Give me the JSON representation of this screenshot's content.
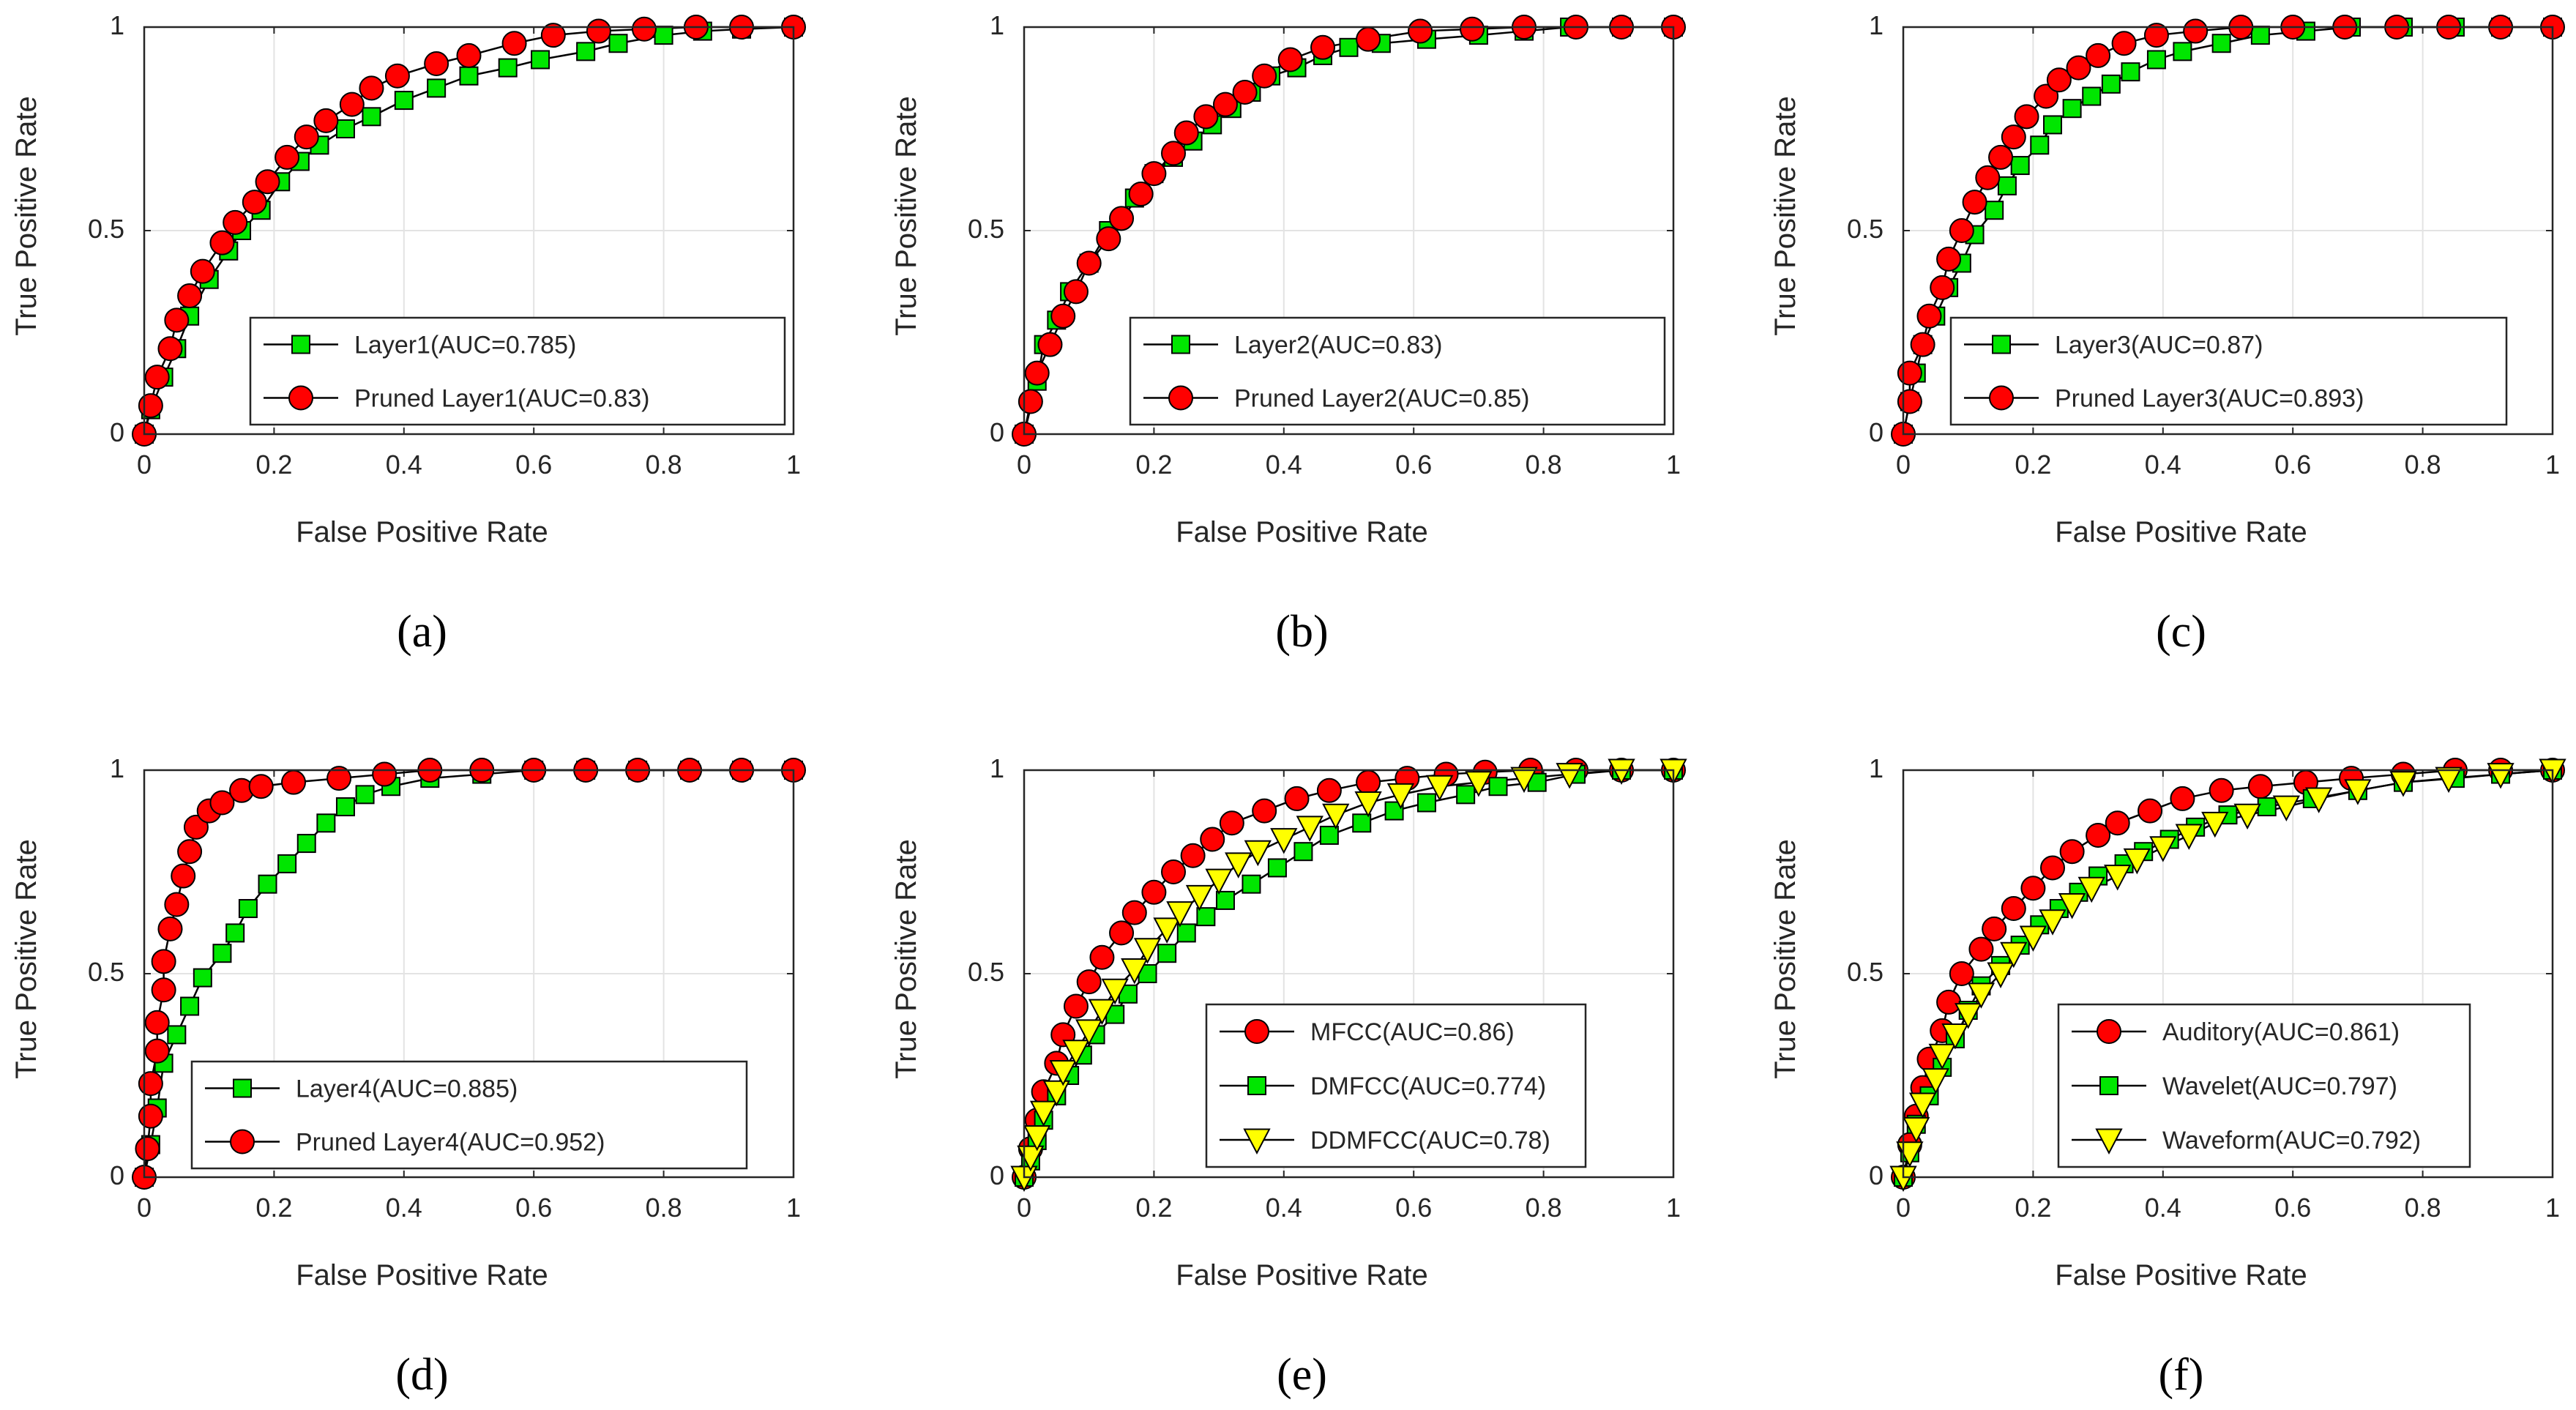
{
  "chart_data": [
    {
      "panel": "a",
      "caption": "(a)",
      "type": "line",
      "xlabel": "False Positive Rate",
      "ylabel": "True Positive Rate",
      "xlim": [
        0,
        1
      ],
      "ylim": [
        0,
        1
      ],
      "xticks": [
        "0",
        "0.2",
        "0.4",
        "0.6",
        "0.8",
        "1"
      ],
      "yticks": [
        "0",
        "0.5",
        "1"
      ],
      "grid": true,
      "legend_position": "bottom-right",
      "series": [
        {
          "name": "Layer1(AUC=0.785)",
          "marker": "square",
          "color": "#00e600",
          "x": [
            0,
            0.01,
            0.03,
            0.05,
            0.07,
            0.1,
            0.13,
            0.15,
            0.18,
            0.21,
            0.24,
            0.27,
            0.31,
            0.35,
            0.4,
            0.45,
            0.5,
            0.56,
            0.61,
            0.68,
            0.73,
            0.8,
            0.86,
            0.92,
            1
          ],
          "y": [
            0,
            0.06,
            0.14,
            0.21,
            0.29,
            0.38,
            0.45,
            0.5,
            0.55,
            0.62,
            0.67,
            0.71,
            0.75,
            0.78,
            0.82,
            0.85,
            0.88,
            0.9,
            0.92,
            0.94,
            0.96,
            0.98,
            0.99,
            0.995,
            1
          ]
        },
        {
          "name": "Pruned Layer1(AUC=0.83)",
          "marker": "circle",
          "color": "#ff0000",
          "x": [
            0,
            0.01,
            0.02,
            0.04,
            0.05,
            0.07,
            0.09,
            0.12,
            0.14,
            0.17,
            0.19,
            0.22,
            0.25,
            0.28,
            0.32,
            0.35,
            0.39,
            0.45,
            0.5,
            0.57,
            0.63,
            0.7,
            0.77,
            0.85,
            0.92,
            1
          ],
          "y": [
            0,
            0.07,
            0.14,
            0.21,
            0.28,
            0.34,
            0.4,
            0.47,
            0.52,
            0.57,
            0.62,
            0.68,
            0.73,
            0.77,
            0.81,
            0.85,
            0.88,
            0.91,
            0.93,
            0.96,
            0.98,
            0.99,
            0.995,
            1,
            1,
            1
          ]
        }
      ]
    },
    {
      "panel": "b",
      "caption": "(b)",
      "type": "line",
      "xlabel": "False Positive Rate",
      "ylabel": "True Positive Rate",
      "xlim": [
        0,
        1
      ],
      "ylim": [
        0,
        1
      ],
      "xticks": [
        "0",
        "0.2",
        "0.4",
        "0.6",
        "0.8",
        "1"
      ],
      "yticks": [
        "0",
        "0.5",
        "1"
      ],
      "grid": true,
      "legend_position": "bottom-right",
      "series": [
        {
          "name": "Layer2(AUC=0.83)",
          "marker": "square",
          "color": "#00e600",
          "x": [
            0,
            0.02,
            0.03,
            0.05,
            0.07,
            0.1,
            0.13,
            0.17,
            0.2,
            0.23,
            0.26,
            0.29,
            0.32,
            0.35,
            0.38,
            0.42,
            0.46,
            0.5,
            0.55,
            0.62,
            0.7,
            0.77,
            0.84,
            0.92,
            1
          ],
          "y": [
            0,
            0.13,
            0.22,
            0.28,
            0.35,
            0.42,
            0.5,
            0.58,
            0.64,
            0.68,
            0.72,
            0.76,
            0.8,
            0.84,
            0.88,
            0.9,
            0.93,
            0.95,
            0.96,
            0.97,
            0.98,
            0.99,
            1,
            1,
            1
          ]
        },
        {
          "name": "Pruned Layer2(AUC=0.85)",
          "marker": "circle",
          "color": "#ff0000",
          "x": [
            0,
            0.01,
            0.02,
            0.04,
            0.06,
            0.08,
            0.1,
            0.13,
            0.15,
            0.18,
            0.2,
            0.23,
            0.25,
            0.28,
            0.31,
            0.34,
            0.37,
            0.41,
            0.46,
            0.53,
            0.61,
            0.69,
            0.77,
            0.85,
            0.92,
            1
          ],
          "y": [
            0,
            0.08,
            0.15,
            0.22,
            0.29,
            0.35,
            0.42,
            0.48,
            0.53,
            0.59,
            0.64,
            0.69,
            0.74,
            0.78,
            0.81,
            0.84,
            0.88,
            0.92,
            0.95,
            0.97,
            0.99,
            0.995,
            1,
            1,
            1,
            1
          ]
        }
      ]
    },
    {
      "panel": "c",
      "caption": "(c)",
      "type": "line",
      "xlabel": "False Positive Rate",
      "ylabel": "True Positive Rate",
      "xlim": [
        0,
        1
      ],
      "ylim": [
        0,
        1
      ],
      "xticks": [
        "0",
        "0.2",
        "0.4",
        "0.6",
        "0.8",
        "1"
      ],
      "yticks": [
        "0",
        "0.5",
        "1"
      ],
      "grid": true,
      "legend_position": "bottom-right",
      "series": [
        {
          "name": "Layer3(AUC=0.87)",
          "marker": "square",
          "color": "#00e600",
          "x": [
            0,
            0.01,
            0.02,
            0.03,
            0.05,
            0.07,
            0.09,
            0.11,
            0.14,
            0.16,
            0.18,
            0.21,
            0.23,
            0.26,
            0.29,
            0.32,
            0.35,
            0.39,
            0.43,
            0.49,
            0.55,
            0.62,
            0.69,
            0.77,
            0.85,
            0.92,
            1
          ],
          "y": [
            0,
            0.08,
            0.15,
            0.22,
            0.29,
            0.36,
            0.42,
            0.49,
            0.55,
            0.61,
            0.66,
            0.71,
            0.76,
            0.8,
            0.83,
            0.86,
            0.89,
            0.92,
            0.94,
            0.96,
            0.98,
            0.99,
            1,
            1,
            1,
            1,
            1
          ]
        },
        {
          "name": "Pruned Layer3(AUC=0.893)",
          "marker": "circle",
          "color": "#ff0000",
          "x": [
            0,
            0.01,
            0.01,
            0.03,
            0.04,
            0.06,
            0.07,
            0.09,
            0.11,
            0.13,
            0.15,
            0.17,
            0.19,
            0.22,
            0.24,
            0.27,
            0.3,
            0.34,
            0.39,
            0.45,
            0.52,
            0.6,
            0.68,
            0.76,
            0.84,
            0.92,
            1
          ],
          "y": [
            0,
            0.08,
            0.15,
            0.22,
            0.29,
            0.36,
            0.43,
            0.5,
            0.57,
            0.63,
            0.68,
            0.73,
            0.78,
            0.83,
            0.87,
            0.9,
            0.93,
            0.96,
            0.98,
            0.99,
            1,
            1,
            1,
            1,
            1,
            1,
            1
          ]
        }
      ]
    },
    {
      "panel": "d",
      "caption": "(d)",
      "type": "line",
      "xlabel": "False Positive Rate",
      "ylabel": "True Positive Rate",
      "xlim": [
        0,
        1
      ],
      "ylim": [
        0,
        1
      ],
      "xticks": [
        "0",
        "0.2",
        "0.4",
        "0.6",
        "0.8",
        "1"
      ],
      "yticks": [
        "0",
        "0.5",
        "1"
      ],
      "grid": true,
      "legend_position": "bottom-right",
      "series": [
        {
          "name": "Layer4(AUC=0.885)",
          "marker": "square",
          "color": "#00e600",
          "x": [
            0,
            0.01,
            0.02,
            0.03,
            0.05,
            0.07,
            0.09,
            0.12,
            0.14,
            0.16,
            0.19,
            0.22,
            0.25,
            0.28,
            0.31,
            0.34,
            0.38,
            0.44,
            0.52,
            0.6,
            0.68,
            0.76,
            0.84,
            0.92,
            1
          ],
          "y": [
            0,
            0.08,
            0.17,
            0.28,
            0.35,
            0.42,
            0.49,
            0.55,
            0.6,
            0.66,
            0.72,
            0.77,
            0.82,
            0.87,
            0.91,
            0.94,
            0.96,
            0.98,
            0.99,
            1,
            1,
            1,
            1,
            1,
            1
          ]
        },
        {
          "name": "Pruned Layer4(AUC=0.952)",
          "marker": "circle",
          "color": "#ff0000",
          "x": [
            0,
            0.005,
            0.01,
            0.01,
            0.02,
            0.02,
            0.03,
            0.03,
            0.04,
            0.05,
            0.06,
            0.07,
            0.08,
            0.1,
            0.12,
            0.15,
            0.18,
            0.23,
            0.3,
            0.37,
            0.44,
            0.52,
            0.6,
            0.68,
            0.76,
            0.84,
            0.92,
            1
          ],
          "y": [
            0,
            0.07,
            0.15,
            0.23,
            0.31,
            0.38,
            0.46,
            0.53,
            0.61,
            0.67,
            0.74,
            0.8,
            0.86,
            0.9,
            0.92,
            0.95,
            0.96,
            0.97,
            0.98,
            0.99,
            1,
            1,
            1,
            1,
            1,
            1,
            1,
            1
          ]
        }
      ]
    },
    {
      "panel": "e",
      "caption": "(e)",
      "type": "line",
      "xlabel": "False Positive Rate",
      "ylabel": "True Positive Rate",
      "xlim": [
        0,
        1
      ],
      "ylim": [
        0,
        1
      ],
      "xticks": [
        "0",
        "0.2",
        "0.4",
        "0.6",
        "0.8",
        "1"
      ],
      "yticks": [
        "0",
        "0.5",
        "1"
      ],
      "grid": true,
      "legend_position": "bottom-right",
      "series": [
        {
          "name": "MFCC(AUC=0.86)",
          "marker": "circle",
          "color": "#ff0000",
          "x": [
            0,
            0.01,
            0.02,
            0.03,
            0.05,
            0.06,
            0.08,
            0.1,
            0.12,
            0.15,
            0.17,
            0.2,
            0.23,
            0.26,
            0.29,
            0.32,
            0.37,
            0.42,
            0.47,
            0.53,
            0.59,
            0.65,
            0.71,
            0.78,
            0.85,
            0.92,
            1
          ],
          "y": [
            0,
            0.07,
            0.14,
            0.21,
            0.28,
            0.35,
            0.42,
            0.48,
            0.54,
            0.6,
            0.65,
            0.7,
            0.75,
            0.79,
            0.83,
            0.87,
            0.9,
            0.93,
            0.95,
            0.97,
            0.98,
            0.99,
            0.995,
            1,
            1,
            1,
            1
          ]
        },
        {
          "name": "DMFCC(AUC=0.774)",
          "marker": "square",
          "color": "#00e600",
          "x": [
            0,
            0.01,
            0.02,
            0.03,
            0.05,
            0.07,
            0.09,
            0.11,
            0.14,
            0.16,
            0.19,
            0.22,
            0.25,
            0.28,
            0.31,
            0.35,
            0.39,
            0.43,
            0.47,
            0.52,
            0.57,
            0.62,
            0.68,
            0.73,
            0.79,
            0.85,
            0.92,
            1
          ],
          "y": [
            0,
            0.04,
            0.09,
            0.14,
            0.2,
            0.25,
            0.3,
            0.35,
            0.4,
            0.45,
            0.5,
            0.55,
            0.6,
            0.64,
            0.68,
            0.72,
            0.76,
            0.8,
            0.84,
            0.87,
            0.9,
            0.92,
            0.94,
            0.96,
            0.97,
            0.99,
            1,
            1
          ]
        },
        {
          "name": "DDMFCC(AUC=0.78)",
          "marker": "triangle",
          "color": "#ffff00",
          "x": [
            0,
            0.01,
            0.02,
            0.03,
            0.05,
            0.06,
            0.08,
            0.1,
            0.12,
            0.14,
            0.17,
            0.19,
            0.22,
            0.24,
            0.27,
            0.3,
            0.33,
            0.36,
            0.4,
            0.44,
            0.48,
            0.53,
            0.58,
            0.64,
            0.7,
            0.77,
            0.84,
            0.92,
            1
          ],
          "y": [
            0,
            0.05,
            0.1,
            0.16,
            0.21,
            0.26,
            0.31,
            0.36,
            0.41,
            0.46,
            0.51,
            0.56,
            0.61,
            0.65,
            0.69,
            0.73,
            0.77,
            0.8,
            0.83,
            0.86,
            0.89,
            0.92,
            0.94,
            0.96,
            0.97,
            0.98,
            0.99,
            1,
            1
          ]
        }
      ]
    },
    {
      "panel": "f",
      "caption": "(f)",
      "type": "line",
      "xlabel": "False Positive Rate",
      "ylabel": "True Positive Rate",
      "xlim": [
        0,
        1
      ],
      "ylim": [
        0,
        1
      ],
      "xticks": [
        "0",
        "0.2",
        "0.4",
        "0.6",
        "0.8",
        "1"
      ],
      "yticks": [
        "0",
        "0.5",
        "1"
      ],
      "grid": true,
      "legend_position": "bottom-right",
      "series": [
        {
          "name": "Auditory(AUC=0.861)",
          "marker": "circle",
          "color": "#ff0000",
          "x": [
            0,
            0.01,
            0.02,
            0.03,
            0.04,
            0.06,
            0.07,
            0.09,
            0.12,
            0.14,
            0.17,
            0.2,
            0.23,
            0.26,
            0.3,
            0.33,
            0.38,
            0.43,
            0.49,
            0.55,
            0.62,
            0.69,
            0.77,
            0.85,
            0.92,
            1
          ],
          "y": [
            0,
            0.08,
            0.15,
            0.22,
            0.29,
            0.36,
            0.43,
            0.5,
            0.56,
            0.61,
            0.66,
            0.71,
            0.76,
            0.8,
            0.84,
            0.87,
            0.9,
            0.93,
            0.95,
            0.96,
            0.97,
            0.98,
            0.99,
            1,
            1,
            1
          ]
        },
        {
          "name": "Wavelet(AUC=0.797)",
          "marker": "square",
          "color": "#00e600",
          "x": [
            0,
            0.01,
            0.02,
            0.04,
            0.06,
            0.08,
            0.1,
            0.12,
            0.15,
            0.18,
            0.21,
            0.24,
            0.27,
            0.3,
            0.34,
            0.37,
            0.41,
            0.45,
            0.5,
            0.56,
            0.63,
            0.7,
            0.77,
            0.85,
            0.92,
            1
          ],
          "y": [
            0,
            0.06,
            0.13,
            0.2,
            0.27,
            0.34,
            0.41,
            0.47,
            0.52,
            0.57,
            0.62,
            0.66,
            0.7,
            0.74,
            0.77,
            0.8,
            0.83,
            0.86,
            0.89,
            0.91,
            0.93,
            0.95,
            0.97,
            0.98,
            0.99,
            1
          ]
        },
        {
          "name": "Waveform(AUC=0.792)",
          "marker": "triangle",
          "color": "#ffff00",
          "x": [
            0,
            0.01,
            0.02,
            0.03,
            0.05,
            0.06,
            0.08,
            0.1,
            0.12,
            0.15,
            0.17,
            0.2,
            0.23,
            0.26,
            0.29,
            0.33,
            0.36,
            0.4,
            0.44,
            0.48,
            0.53,
            0.59,
            0.64,
            0.7,
            0.77,
            0.84,
            0.92,
            1
          ],
          "y": [
            0,
            0.06,
            0.12,
            0.18,
            0.24,
            0.3,
            0.35,
            0.4,
            0.45,
            0.5,
            0.55,
            0.59,
            0.63,
            0.67,
            0.71,
            0.74,
            0.78,
            0.81,
            0.84,
            0.87,
            0.89,
            0.91,
            0.93,
            0.95,
            0.97,
            0.98,
            0.99,
            1
          ]
        }
      ]
    }
  ]
}
